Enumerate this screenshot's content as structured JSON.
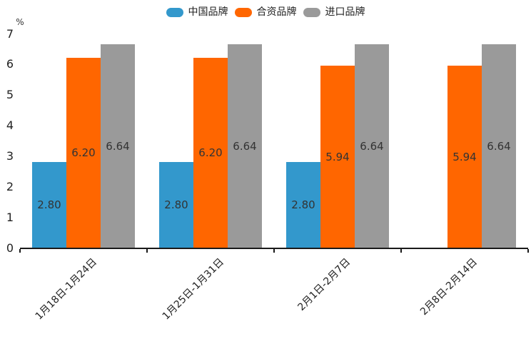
{
  "legend": {
    "items": [
      {
        "label": "中国品牌",
        "color": "#3398cc"
      },
      {
        "label": "合资品牌",
        "color": "#ff6600"
      },
      {
        "label": "进口品牌",
        "color": "#9a9a9a"
      }
    ]
  },
  "y_axis": {
    "unit": "%",
    "ticks": [
      "0",
      "1",
      "2",
      "3",
      "4",
      "5",
      "6",
      "7"
    ]
  },
  "chart_data": {
    "type": "bar",
    "title": "",
    "categories": [
      "1月18日-1月24日",
      "1月25日-1月31日",
      "2月1日-2月7日",
      "2月8日-2月14日"
    ],
    "series": [
      {
        "name": "中国品牌",
        "color": "#3398cc",
        "values": [
          2.8,
          2.8,
          2.8,
          null
        ],
        "labels": [
          "2.80",
          "2.80",
          "2.80",
          null
        ]
      },
      {
        "name": "合资品牌",
        "color": "#ff6600",
        "values": [
          6.2,
          6.2,
          5.94,
          5.94
        ],
        "labels": [
          "6.20",
          "6.20",
          "5.94",
          "5.94"
        ]
      },
      {
        "name": "进口品牌",
        "color": "#9a9a9a",
        "values": [
          6.64,
          6.64,
          6.64,
          6.64
        ],
        "labels": [
          "6.64",
          "6.64",
          "6.64",
          "6.64"
        ]
      }
    ],
    "xlabel": "",
    "ylabel": "%",
    "ylim": [
      0,
      7
    ],
    "yticks": [
      0,
      1,
      2,
      3,
      4,
      5,
      6,
      7
    ],
    "grid": false,
    "legend_position": "top",
    "bar_value_labels": "centered-inside-bars",
    "x_tick_label_rotation_deg": 45
  }
}
